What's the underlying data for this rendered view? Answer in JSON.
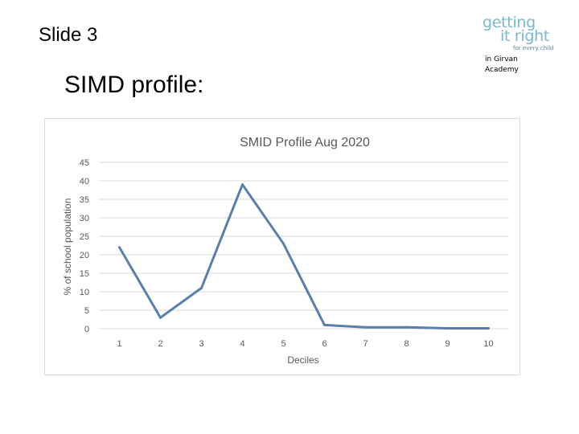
{
  "slide": {
    "label": "Slide 3",
    "title": "SIMD profile:"
  },
  "logo": {
    "line1": "getting",
    "line2": "it right",
    "line3": "for every child",
    "sub1": "in Girvan",
    "sub2": "Academy"
  },
  "chart_data": {
    "type": "line",
    "title": "SMID Profile Aug 2020",
    "xlabel": "Deciles",
    "ylabel": "% of school population",
    "categories": [
      "1",
      "2",
      "3",
      "4",
      "5",
      "6",
      "7",
      "8",
      "9",
      "10"
    ],
    "values": [
      22,
      3,
      11,
      39,
      23,
      1,
      0.4,
      0.4,
      0.1,
      0.1
    ],
    "ylim": [
      0,
      45
    ],
    "yticks": [
      0,
      5,
      10,
      15,
      20,
      25,
      30,
      35,
      40,
      45
    ],
    "grid": true,
    "legend": "none",
    "colors": {
      "line": "#5b7fad",
      "grid": "#d9d9d9",
      "text": "#595959"
    }
  }
}
